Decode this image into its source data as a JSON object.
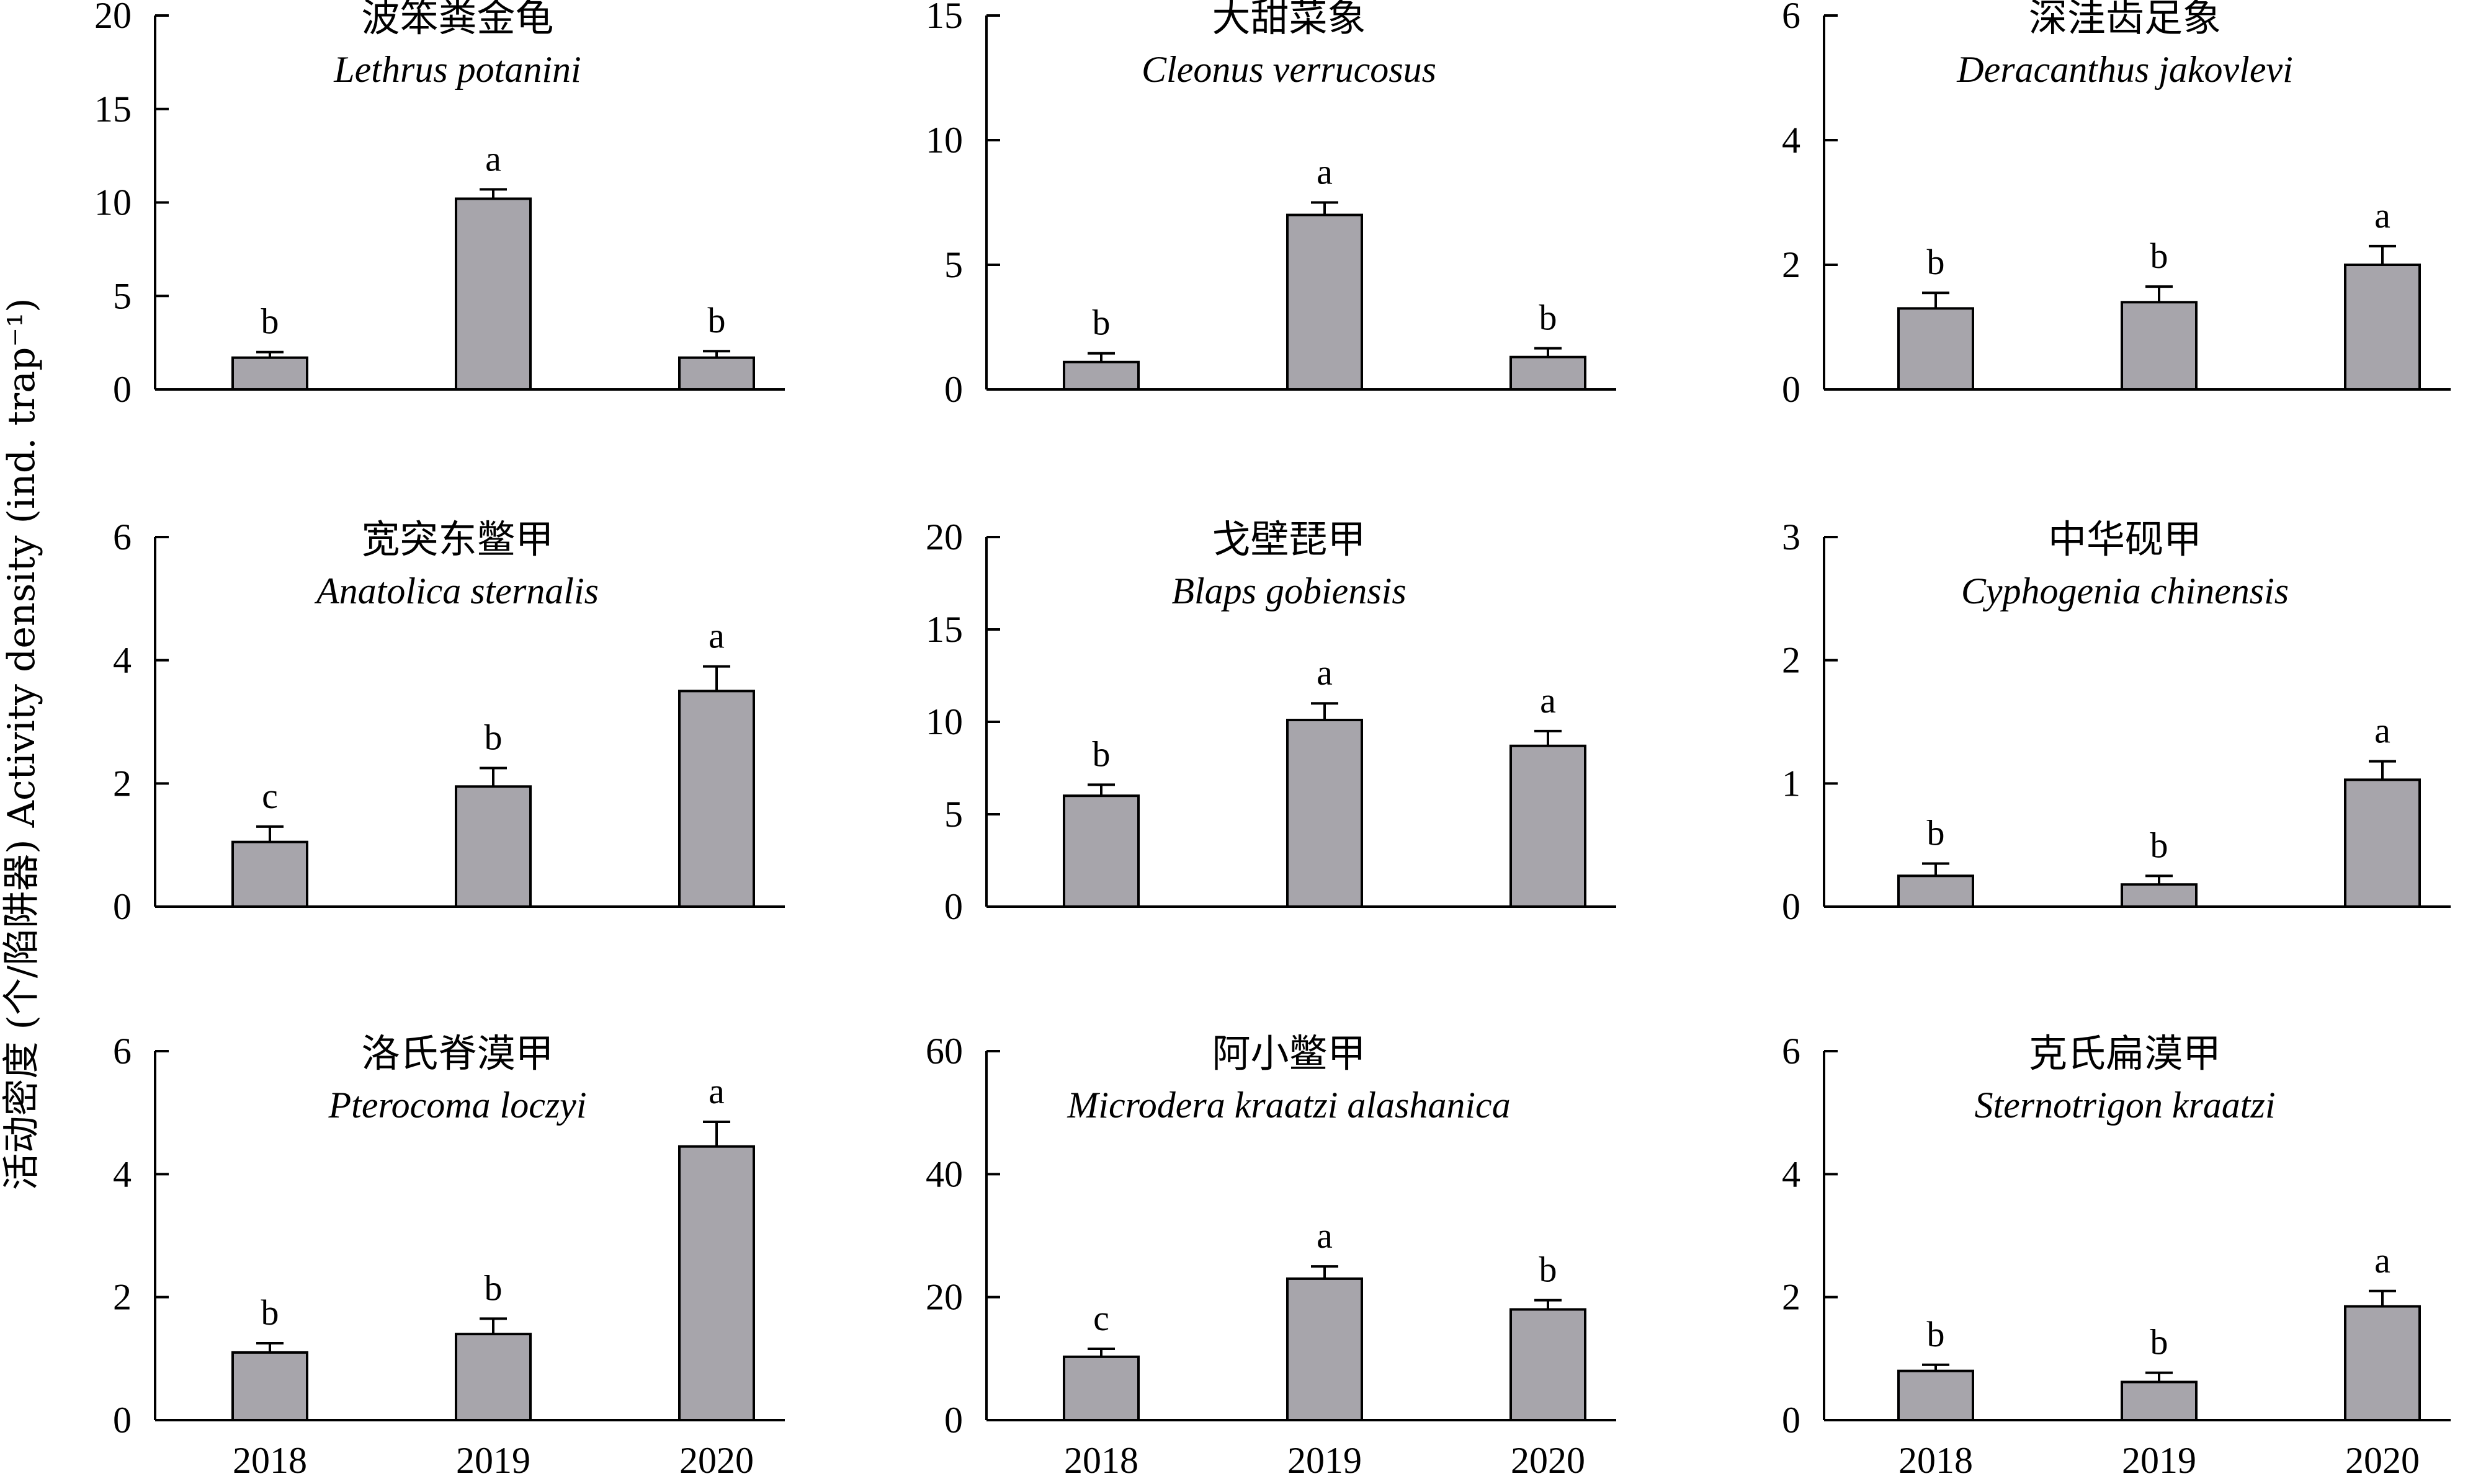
{
  "figure": {
    "ylabel": "活动密度 (个/陷阱器) Activity density (ind. trap⁻¹)"
  },
  "style": {
    "bar_fill": "#a7a5ab",
    "axis_color": "#000000"
  },
  "chart_data": [
    {
      "type": "bar",
      "title": "波笨粪金龟",
      "subtitle": "Lethrus potanini",
      "categories": [
        "2018",
        "2019",
        "2020"
      ],
      "values": [
        1.7,
        10.2,
        1.7
      ],
      "errors": [
        0.3,
        0.5,
        0.35
      ],
      "letters": [
        "b",
        "a",
        "b"
      ],
      "ylim": [
        0,
        20
      ],
      "yticks": [
        0,
        5,
        10,
        15,
        20
      ],
      "xlabel": "",
      "ylabel": ""
    },
    {
      "type": "bar",
      "title": "大甜菜象",
      "subtitle": "Cleonus verrucosus",
      "categories": [
        "2018",
        "2019",
        "2020"
      ],
      "values": [
        1.1,
        7.0,
        1.3
      ],
      "errors": [
        0.35,
        0.5,
        0.35
      ],
      "letters": [
        "b",
        "a",
        "b"
      ],
      "ylim": [
        0,
        15
      ],
      "yticks": [
        0,
        5,
        10,
        15
      ],
      "xlabel": "",
      "ylabel": ""
    },
    {
      "type": "bar",
      "title": "深洼齿足象",
      "subtitle": "Deracanthus jakovlevi",
      "categories": [
        "2018",
        "2019",
        "2020"
      ],
      "values": [
        1.3,
        1.4,
        2.0
      ],
      "errors": [
        0.25,
        0.25,
        0.3
      ],
      "letters": [
        "b",
        "b",
        "a"
      ],
      "ylim": [
        0,
        6
      ],
      "yticks": [
        0,
        2,
        4,
        6
      ],
      "xlabel": "",
      "ylabel": ""
    },
    {
      "type": "bar",
      "title": "宽突东鳖甲",
      "subtitle": "Anatolica sternalis",
      "categories": [
        "2018",
        "2019",
        "2020"
      ],
      "values": [
        1.05,
        1.95,
        3.5
      ],
      "errors": [
        0.25,
        0.3,
        0.4
      ],
      "letters": [
        "c",
        "b",
        "a"
      ],
      "ylim": [
        0,
        6
      ],
      "yticks": [
        0,
        2,
        4,
        6
      ],
      "xlabel": "",
      "ylabel": ""
    },
    {
      "type": "bar",
      "title": "戈壁琵甲",
      "subtitle": "Blaps gobiensis",
      "categories": [
        "2018",
        "2019",
        "2020"
      ],
      "values": [
        6.0,
        10.1,
        8.7
      ],
      "errors": [
        0.6,
        0.9,
        0.8
      ],
      "letters": [
        "b",
        "a",
        "a"
      ],
      "ylim": [
        0,
        20
      ],
      "yticks": [
        0,
        5,
        10,
        15,
        20
      ],
      "xlabel": "",
      "ylabel": ""
    },
    {
      "type": "bar",
      "title": "中华砚甲",
      "subtitle": "Cyphogenia chinensis",
      "categories": [
        "2018",
        "2019",
        "2020"
      ],
      "values": [
        0.25,
        0.18,
        1.03
      ],
      "errors": [
        0.1,
        0.07,
        0.15
      ],
      "letters": [
        "b",
        "b",
        "a"
      ],
      "ylim": [
        0,
        3
      ],
      "yticks": [
        0,
        1,
        2,
        3
      ],
      "xlabel": "",
      "ylabel": ""
    },
    {
      "type": "bar",
      "title": "洛氏脊漠甲",
      "subtitle": "Pterocoma  loczyi",
      "categories": [
        "2018",
        "2019",
        "2020"
      ],
      "values": [
        1.1,
        1.4,
        4.45
      ],
      "errors": [
        0.15,
        0.25,
        0.4
      ],
      "letters": [
        "b",
        "b",
        "a"
      ],
      "ylim": [
        0,
        6
      ],
      "yticks": [
        0,
        2,
        4,
        6
      ],
      "xlabel": "",
      "ylabel": ""
    },
    {
      "type": "bar",
      "title": "阿小鳖甲",
      "subtitle": "Microdera kraatzi alashanica",
      "categories": [
        "2018",
        "2019",
        "2020"
      ],
      "values": [
        10.3,
        23.0,
        18.0
      ],
      "errors": [
        1.3,
        2.0,
        1.5
      ],
      "letters": [
        "c",
        "a",
        "b"
      ],
      "ylim": [
        0,
        60
      ],
      "yticks": [
        0,
        20,
        40,
        60
      ],
      "xlabel": "",
      "ylabel": ""
    },
    {
      "type": "bar",
      "title": "克氏扁漠甲",
      "subtitle": "Sternotrigon kraatzi",
      "categories": [
        "2018",
        "2019",
        "2020"
      ],
      "values": [
        0.8,
        0.62,
        1.85
      ],
      "errors": [
        0.1,
        0.15,
        0.25
      ],
      "letters": [
        "b",
        "b",
        "a"
      ],
      "ylim": [
        0,
        6
      ],
      "yticks": [
        0,
        2,
        4,
        6
      ],
      "xlabel": "",
      "ylabel": ""
    }
  ]
}
